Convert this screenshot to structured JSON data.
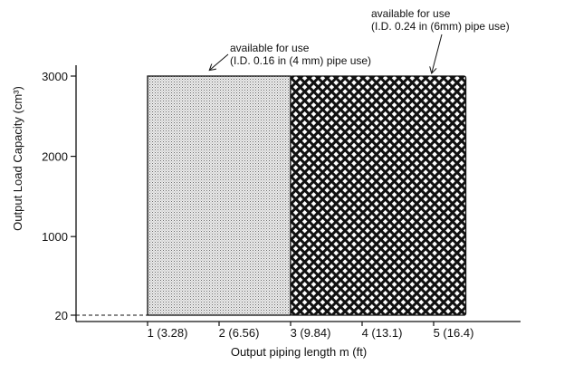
{
  "chart_data": {
    "type": "area",
    "xlabel": "Output piping length m (ft)",
    "ylabel": "Output Load Capacity (cm³)",
    "x_ticks": [
      {
        "value": 1,
        "label": "1 (3.28)"
      },
      {
        "value": 2,
        "label": "2 (6.56)"
      },
      {
        "value": 3,
        "label": "3 (9.84)"
      },
      {
        "value": 4,
        "label": "4 (13.1)"
      },
      {
        "value": 5,
        "label": "5 (16.4)"
      }
    ],
    "y_ticks": [
      {
        "value": 20,
        "label": "20"
      },
      {
        "value": 1000,
        "label": "1000"
      },
      {
        "value": 2000,
        "label": "2000"
      },
      {
        "value": 3000,
        "label": "3000"
      }
    ],
    "xlim": [
      0,
      5.7
    ],
    "ylim": [
      20,
      3000
    ],
    "grid": false,
    "dashed_reference": {
      "y": 20,
      "x_from": 0,
      "x_to": 1
    },
    "regions": [
      {
        "name": "I.D. 0.16 in (4 mm) pipe",
        "pattern": "fine-dots",
        "x_range": [
          1,
          3
        ],
        "y_range": [
          20,
          3000
        ],
        "annotation_lines": [
          "available for use",
          "(I.D. 0.16 in (4 mm) pipe use)"
        ]
      },
      {
        "name": "I.D. 0.24 in (6 mm) pipe",
        "pattern": "crosshatch",
        "x_range": [
          3,
          5.45
        ],
        "y_range": [
          20,
          3000
        ],
        "annotation_lines": [
          "available for use",
          "(I.D. 0.24 in (6mm) pipe use)"
        ]
      }
    ]
  }
}
